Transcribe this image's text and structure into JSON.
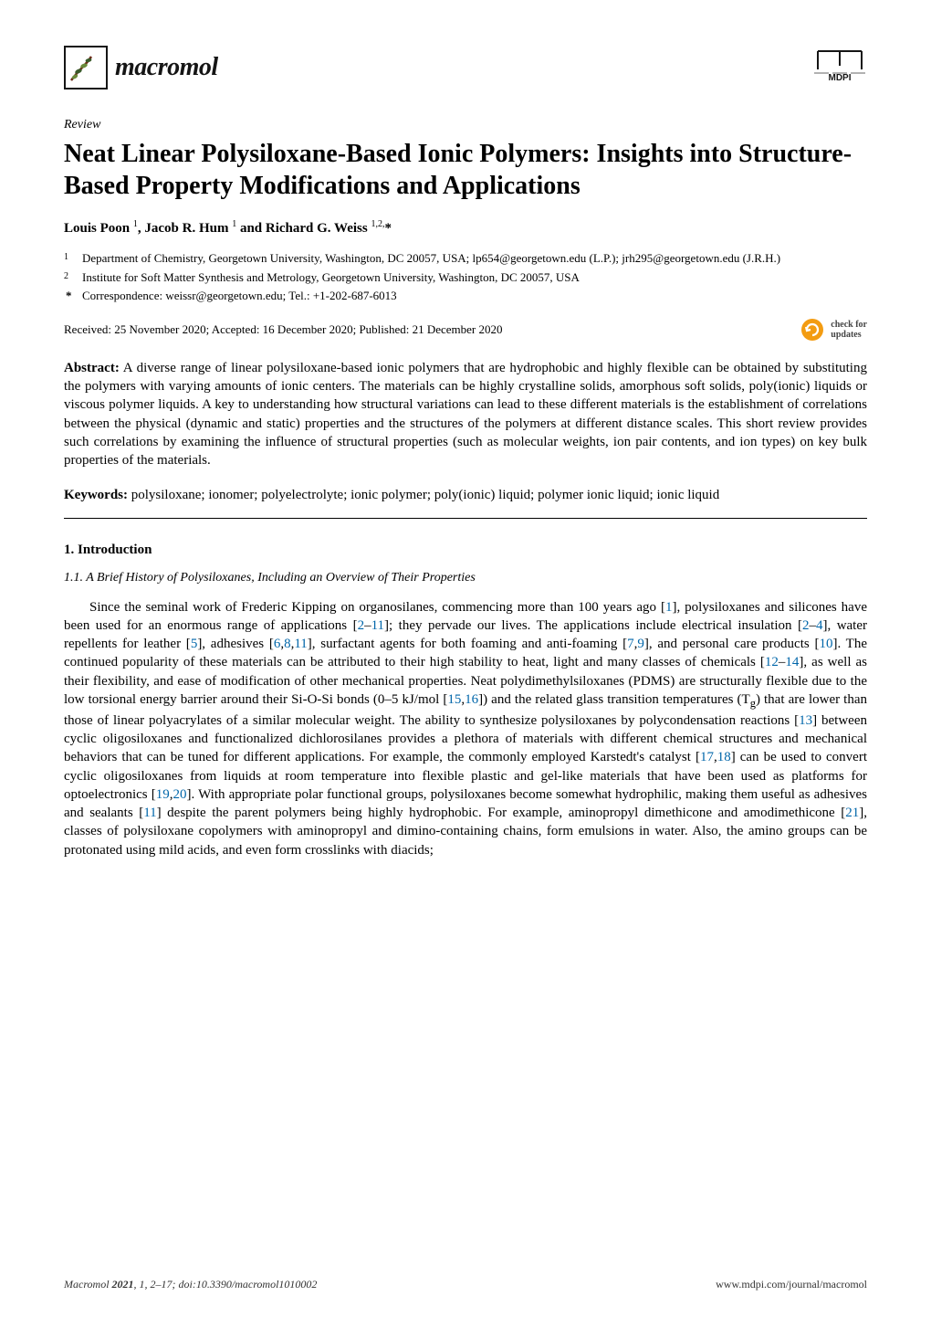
{
  "journal": {
    "name": "macromol",
    "logo_colors": {
      "branch": "#6b2a17",
      "leaf_dark": "#3a5a2a",
      "leaf_light": "#6a8a3a",
      "border": "#151515"
    },
    "publisher_logo": "MDPI",
    "publisher_colors": {
      "stroke": "#151515",
      "accent": "#999999"
    }
  },
  "article": {
    "type_label": "Review",
    "title": "Neat Linear Polysiloxane-Based Ionic Polymers: Insights into Structure-Based Property Modifications and Applications",
    "authors_html": "Louis Poon <sup>1</sup>, Jacob R. Hum <sup>1</sup> and Richard G. Weiss <sup>1,2,</sup>*",
    "affiliations": [
      {
        "marker": "1",
        "text": "Department of Chemistry, Georgetown University, Washington, DC 20057, USA; lp654@georgetown.edu (L.P.); jrh295@georgetown.edu (J.R.H.)"
      },
      {
        "marker": "2",
        "text": "Institute for Soft Matter Synthesis and Metrology, Georgetown University, Washington, DC 20057, USA"
      }
    ],
    "correspondence": {
      "marker": "*",
      "text": "Correspondence: weissr@georgetown.edu; Tel.: +1-202-687-6013"
    },
    "dates": "Received: 25 November 2020; Accepted: 16 December 2020; Published: 21 December 2020",
    "check_updates_label": "check for\nupdates",
    "check_updates_color": "#f39c12",
    "abstract_label": "Abstract:",
    "abstract": "A diverse range of linear polysiloxane-based ionic polymers that are hydrophobic and highly flexible can be obtained by substituting the polymers with varying amounts of ionic centers. The materials can be highly crystalline solids, amorphous soft solids, poly(ionic) liquids or viscous polymer liquids. A key to understanding how structural variations can lead to these different materials is the establishment of correlations between the physical (dynamic and static) properties and the structures of the polymers at different distance scales. This short review provides such correlations by examining the influence of structural properties (such as molecular weights, ion pair contents, and ion types) on key bulk properties of the materials.",
    "keywords_label": "Keywords:",
    "keywords": "polysiloxane; ionomer; polyelectrolyte; ionic polymer; poly(ionic) liquid; polymer ionic liquid; ionic liquid"
  },
  "sections": {
    "intro_heading": "1. Introduction",
    "sub_heading": "1.1. A Brief History of Polysiloxanes, Including an Overview of Their Properties",
    "body_html": "Since the seminal work of Frederic Kipping on organosilanes, commencing more than 100 years ago [<span class='ref-link'>1</span>], polysiloxanes and silicones have been used for an enormous range of applications [<span class='ref-link'>2</span>–<span class='ref-link'>11</span>]; they pervade our lives. The applications include electrical insulation [<span class='ref-link'>2</span>–<span class='ref-link'>4</span>], water repellents for leather [<span class='ref-link'>5</span>], adhesives [<span class='ref-link'>6</span>,<span class='ref-link'>8</span>,<span class='ref-link'>11</span>], surfactant agents for both foaming and anti-foaming [<span class='ref-link'>7</span>,<span class='ref-link'>9</span>], and personal care products [<span class='ref-link'>10</span>]. The continued popularity of these materials can be attributed to their high stability to heat, light and many classes of chemicals [<span class='ref-link'>12</span>–<span class='ref-link'>14</span>], as well as their flexibility, and ease of modification of other mechanical properties. Neat polydimethylsiloxanes (PDMS) are structurally flexible due to the low torsional energy barrier around their Si-O-Si bonds (0–5 kJ/mol [<span class='ref-link'>15</span>,<span class='ref-link'>16</span>]) and the related glass transition temperatures (T<sub>g</sub>) that are lower than those of linear polyacrylates of a similar molecular weight. The ability to synthesize polysiloxanes by polycondensation reactions [<span class='ref-link'>13</span>] between cyclic oligosiloxanes and functionalized dichlorosilanes provides a plethora of materials with different chemical structures and mechanical behaviors that can be tuned for different applications. For example, the commonly employed Karstedt's catalyst [<span class='ref-link'>17</span>,<span class='ref-link'>18</span>] can be used to convert cyclic oligosiloxanes from liquids at room temperature into flexible plastic and gel-like materials that have been used as platforms for optoelectronics [<span class='ref-link'>19</span>,<span class='ref-link'>20</span>]. With appropriate polar functional groups, polysiloxanes become somewhat hydrophilic, making them useful as adhesives and sealants [<span class='ref-link'>11</span>] despite the parent polymers being highly hydrophobic. For example, aminopropyl dimethicone and amodimethicone [<span class='ref-link'>21</span>], classes of polysiloxane copolymers with aminopropyl and dimino-containing chains, form emulsions in water. Also, the amino groups can be protonated using mild acids, and even form crosslinks with diacids;"
  },
  "footer": {
    "left_html": "<i>Macromol</i> <b>2021</b>, <i>1</i>, 2–17; doi:10.3390/macromol1010002",
    "right": "www.mdpi.com/journal/macromol"
  },
  "styling": {
    "page_bg": "#ffffff",
    "text_color": "#000000",
    "link_color": "#0066aa",
    "title_fontsize": 28,
    "body_fontsize": 15,
    "small_fontsize": 13,
    "font_family": "Palatino Linotype, Book Antiqua, Palatino, Georgia, serif"
  }
}
